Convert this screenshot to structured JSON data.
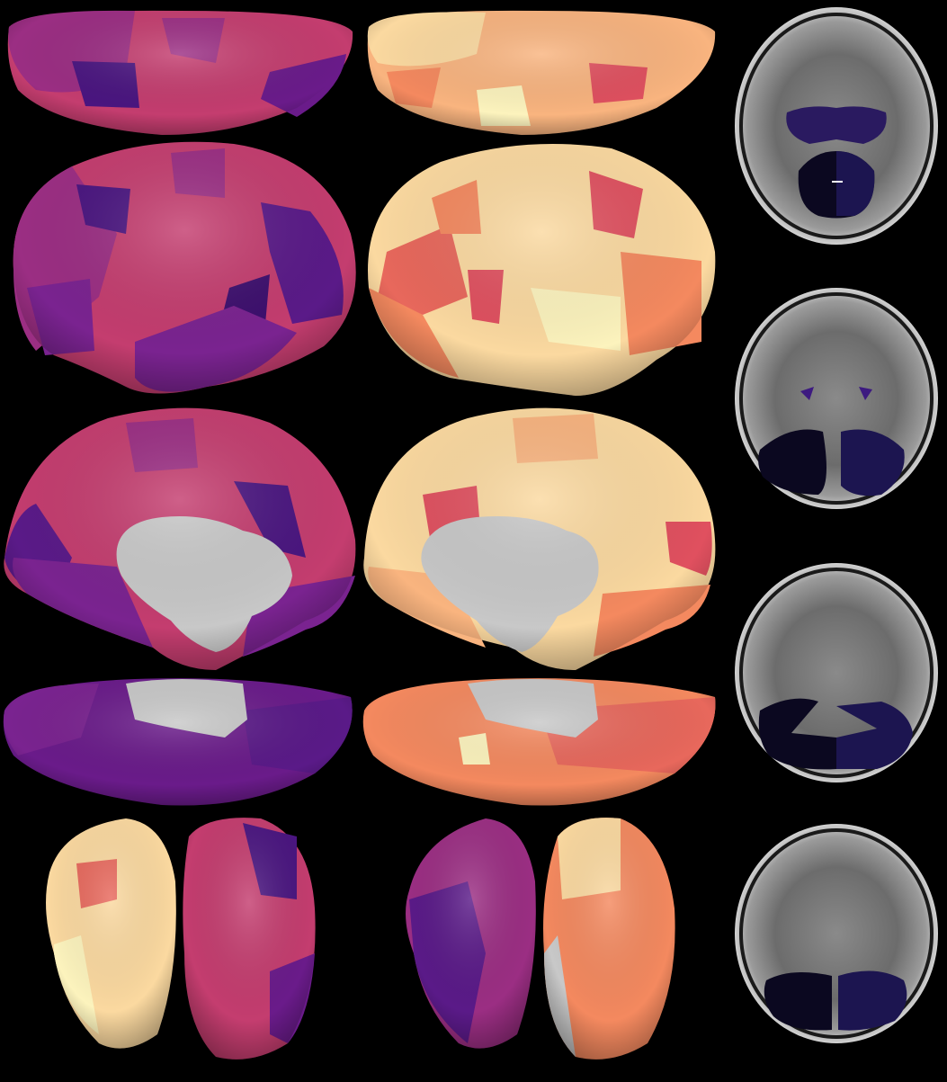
{
  "figure": {
    "background": "#000000",
    "panels": {
      "left_hemisphere_colormap": "magma-dark",
      "right_hemisphere_colormap": "magma-light",
      "views": [
        "dorsal",
        "lateral",
        "medial",
        "ventral",
        "posterior"
      ],
      "axial_slices": 4
    },
    "colors": {
      "deep_purple": "#3d0f6e",
      "violet": "#6a1b8a",
      "magenta": "#9b2e83",
      "pink": "#c43d6f",
      "coral": "#e8685c",
      "salmon": "#f4895f",
      "peach": "#f9b47f",
      "cream": "#fbd9a0",
      "pale": "#fcf3bd",
      "medial_wall": "#c8c8c8",
      "cerebellum_dark": "#0b0820",
      "cerebellum_navy": "#1c1550"
    }
  }
}
